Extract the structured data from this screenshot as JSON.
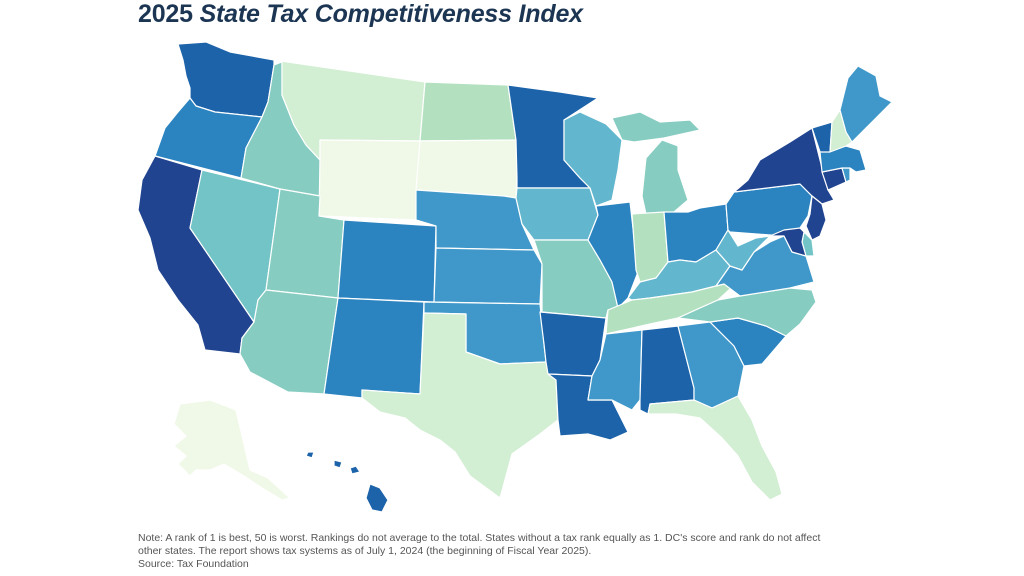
{
  "title": {
    "year": "2025",
    "name": "State Tax Competitiveness Index"
  },
  "note": {
    "line1": "Note: A rank of 1 is best, 50 is worst. Rankings do not average to the total. States without a tax rank equally as 1. DC's score and rank do not affect",
    "line2": "other states. The report shows tax systems as of July 1, 2024 (the beginning of Fiscal Year 2025).",
    "source": "Source: Tax Foundation"
  },
  "colors": {
    "c1": "#f0f9e8",
    "c2": "#d2eed3",
    "c3": "#b3e1c0",
    "c4": "#86ccc1",
    "c5": "#72c4c6",
    "c6": "#62b6cd",
    "c7": "#3f98c9",
    "c8": "#2b83c0",
    "c9": "#1c63a9",
    "c10": "#20448f"
  },
  "states": {
    "WA": "c9",
    "OR": "c8",
    "CA": "c10",
    "NV": "c5",
    "ID": "c4",
    "MT": "c2",
    "WY": "c1",
    "UT": "c4",
    "AZ": "c4",
    "CO": "c8",
    "NM": "c8",
    "ND": "c3",
    "SD": "c1",
    "NE": "c7",
    "KS": "c7",
    "OK": "c7",
    "TX": "c2",
    "MN": "c9",
    "IA": "c6",
    "MO": "c4",
    "AR": "c9",
    "LA": "c9",
    "WI": "c6",
    "IL": "c8",
    "MI": "c4",
    "IN": "c3",
    "OH": "c8",
    "KY": "c6",
    "TN": "c3",
    "MS": "c7",
    "AL": "c9",
    "GA": "c7",
    "FL": "c2",
    "SC": "c8",
    "NC": "c4",
    "VA": "c7",
    "WV": "c6",
    "PA": "c8",
    "NY": "c10",
    "VT": "c9",
    "NH": "c2",
    "ME": "c7",
    "MA": "c8",
    "RI": "c7",
    "CT": "c10",
    "NJ": "c10",
    "DE": "c5",
    "MD": "c10",
    "AK": "c1",
    "HI": "c9"
  }
}
